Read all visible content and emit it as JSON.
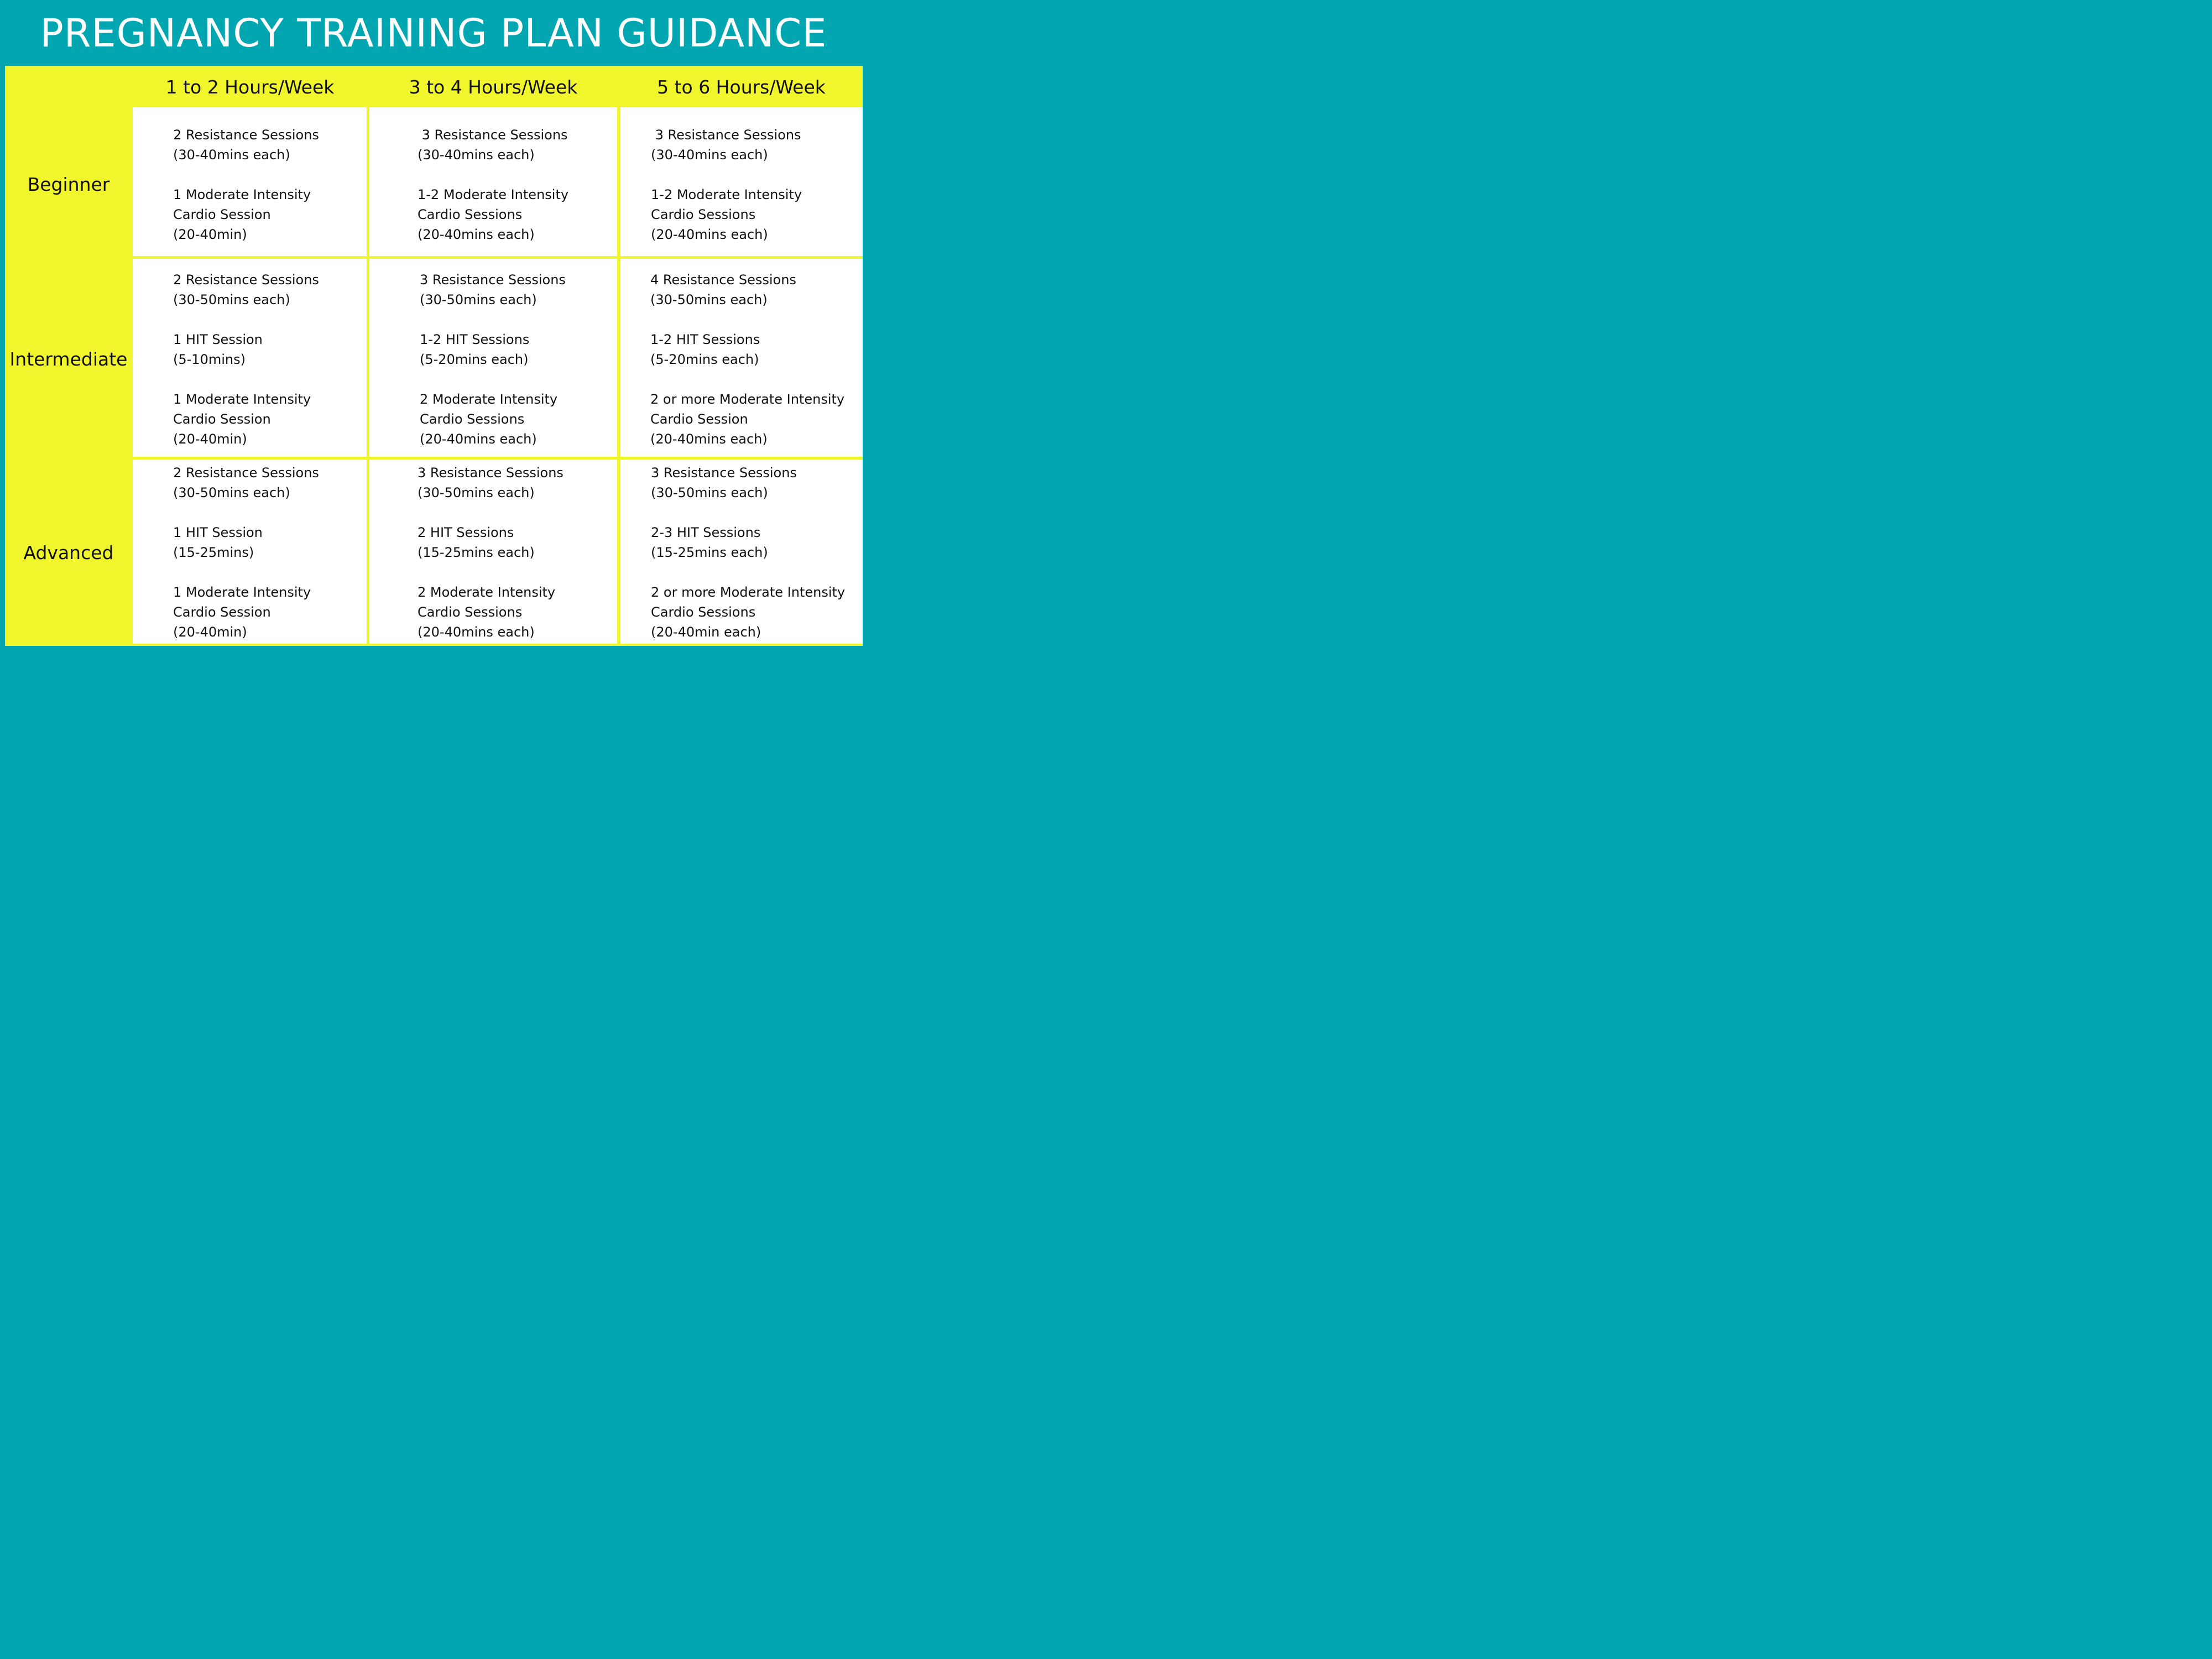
{
  "title": "PREGNANCY TRAINING PLAN GUIDANCE",
  "colors": {
    "background_teal": "#02a6b1",
    "panel_yellow": "#f1f52c",
    "cell_white": "#ffffff",
    "text": "#111111"
  },
  "table": {
    "columns": [
      "1 to 2 Hours/Week",
      "3 to 4 Hours/Week",
      "5 to 6 Hours/Week"
    ],
    "rows": [
      {
        "label": "Beginner",
        "cells": [
          [
            "2 Resistance Sessions",
            "(30-40mins each)",
            "",
            "1 Moderate Intensity",
            "Cardio Session",
            "(20-40min)"
          ],
          [
            " 3 Resistance Sessions",
            "(30-40mins each)",
            "",
            "1-2 Moderate Intensity",
            "Cardio Sessions",
            "(20-40mins each)"
          ],
          [
            " 3 Resistance Sessions",
            "(30-40mins each)",
            "",
            "1-2 Moderate Intensity",
            "Cardio Sessions",
            "(20-40mins each)"
          ]
        ]
      },
      {
        "label": "Intermediate",
        "cells": [
          [
            "2 Resistance Sessions",
            "(30-50mins each)",
            "",
            "1 HIT Session",
            "(5-10mins)",
            "",
            "1 Moderate Intensity",
            "Cardio Session",
            "(20-40min)"
          ],
          [
            "3 Resistance Sessions",
            "(30-50mins each)",
            "",
            "1-2 HIT Sessions",
            "(5-20mins each)",
            "",
            "2 Moderate Intensity",
            "Cardio Sessions",
            "(20-40mins each)"
          ],
          [
            "4 Resistance Sessions",
            "(30-50mins each)",
            "",
            "1-2 HIT Sessions",
            "(5-20mins each)",
            "",
            "2 or more Moderate Intensity",
            "Cardio Session",
            "(20-40mins each)"
          ]
        ]
      },
      {
        "label": "Advanced",
        "cells": [
          [
            "2 Resistance Sessions",
            "(30-50mins each)",
            "",
            "1 HIT Session",
            "(15-25mins)",
            "",
            "1 Moderate Intensity",
            "Cardio Session",
            "(20-40min)"
          ],
          [
            "3 Resistance Sessions",
            "(30-50mins each)",
            "",
            "2 HIT Sessions",
            "(15-25mins each)",
            "",
            "2 Moderate Intensity",
            "Cardio Sessions",
            "(20-40mins each)"
          ],
          [
            "3 Resistance Sessions",
            "(30-50mins each)",
            "",
            "2-3 HIT Sessions",
            "(15-25mins each)",
            "",
            "2 or more Moderate Intensity",
            "Cardio Sessions",
            "(20-40min each)"
          ]
        ]
      }
    ]
  }
}
